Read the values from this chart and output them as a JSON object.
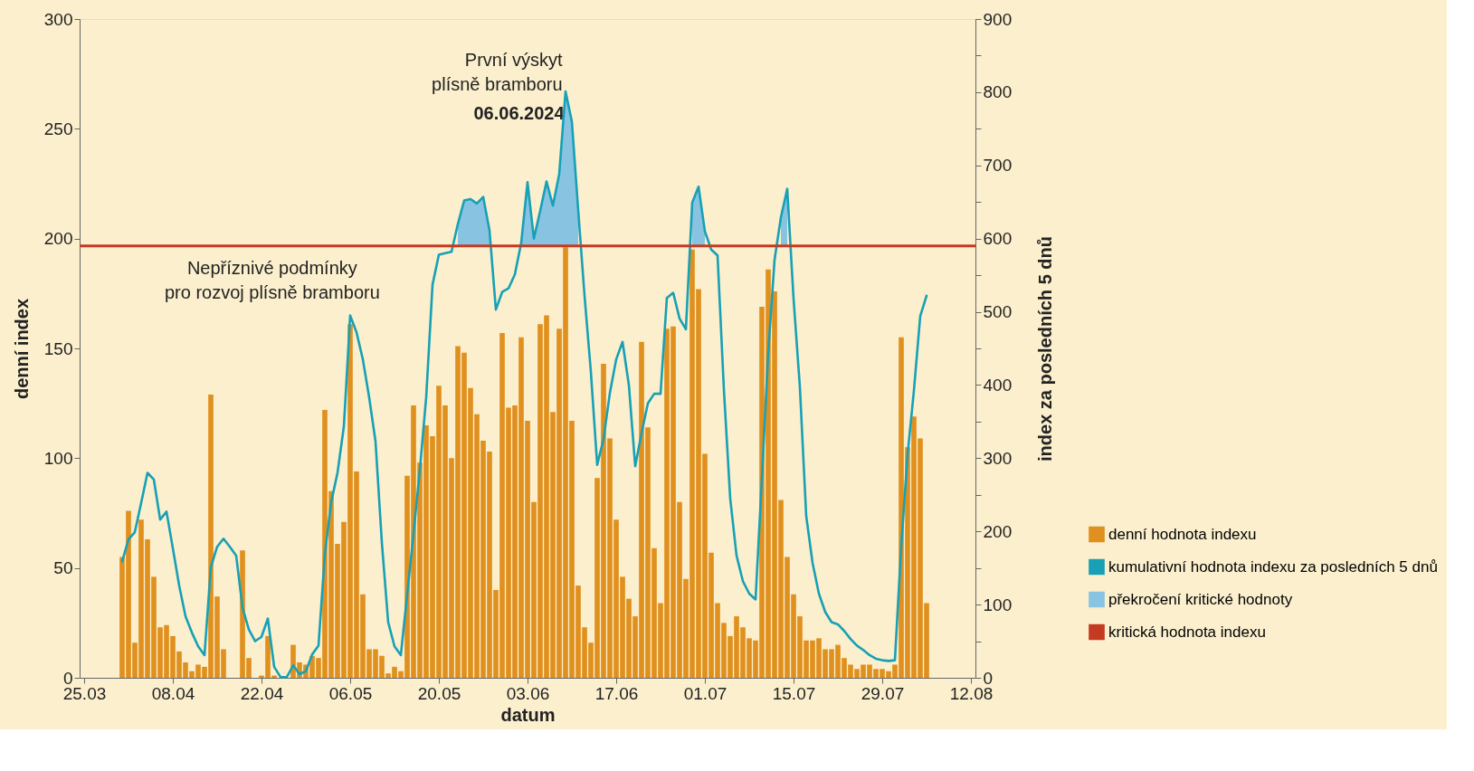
{
  "chart_data": {
    "type": "bar",
    "xlabel": "datum",
    "ylabel": "denní index",
    "y2label": "index za posledních 5 dnů",
    "x": [
      "2024-03-31",
      "2024-04-01",
      "2024-04-02",
      "2024-04-03",
      "2024-04-04",
      "2024-04-05",
      "2024-04-06",
      "2024-04-07",
      "2024-04-08",
      "2024-04-09",
      "2024-04-10",
      "2024-04-11",
      "2024-04-12",
      "2024-04-13",
      "2024-04-14",
      "2024-04-15",
      "2024-04-16",
      "2024-04-17",
      "2024-04-18",
      "2024-04-19",
      "2024-04-20",
      "2024-04-21",
      "2024-04-22",
      "2024-04-23",
      "2024-04-24",
      "2024-04-25",
      "2024-04-26",
      "2024-04-27",
      "2024-04-28",
      "2024-04-29",
      "2024-04-30",
      "2024-05-01",
      "2024-05-02",
      "2024-05-03",
      "2024-05-04",
      "2024-05-05",
      "2024-05-06",
      "2024-05-07",
      "2024-05-08",
      "2024-05-09",
      "2024-05-10",
      "2024-05-11",
      "2024-05-12",
      "2024-05-13",
      "2024-05-14",
      "2024-05-15",
      "2024-05-16",
      "2024-05-17",
      "2024-05-18",
      "2024-05-19",
      "2024-05-20",
      "2024-05-21",
      "2024-05-22",
      "2024-05-23",
      "2024-05-24",
      "2024-05-25",
      "2024-05-26",
      "2024-05-27",
      "2024-05-28",
      "2024-05-29",
      "2024-05-30",
      "2024-05-31",
      "2024-06-01",
      "2024-06-02",
      "2024-06-03",
      "2024-06-04",
      "2024-06-05",
      "2024-06-06",
      "2024-06-07",
      "2024-06-08",
      "2024-06-09",
      "2024-06-10",
      "2024-06-11",
      "2024-06-12",
      "2024-06-13",
      "2024-06-14",
      "2024-06-15",
      "2024-06-16",
      "2024-06-17",
      "2024-06-18",
      "2024-06-19",
      "2024-06-20",
      "2024-06-21",
      "2024-06-22",
      "2024-06-23",
      "2024-06-24",
      "2024-06-25",
      "2024-06-26",
      "2024-06-27",
      "2024-06-28",
      "2024-06-29",
      "2024-06-30",
      "2024-07-01",
      "2024-07-02",
      "2024-07-03",
      "2024-07-04",
      "2024-07-05",
      "2024-07-06",
      "2024-07-07",
      "2024-07-08",
      "2024-07-09",
      "2024-07-10",
      "2024-07-11",
      "2024-07-12",
      "2024-07-13",
      "2024-07-14",
      "2024-07-15",
      "2024-07-16",
      "2024-07-17",
      "2024-07-18",
      "2024-07-19",
      "2024-07-20",
      "2024-07-21",
      "2024-07-22",
      "2024-07-23",
      "2024-07-24",
      "2024-07-25",
      "2024-07-26",
      "2024-07-27",
      "2024-07-28",
      "2024-07-29",
      "2024-07-30",
      "2024-07-31",
      "2024-08-01",
      "2024-08-02",
      "2024-08-03",
      "2024-08-04",
      "2024-08-05"
    ],
    "series": [
      {
        "name": "denní hodnota indexu",
        "color": "#e0901e",
        "values": [
          55,
          76,
          16,
          72,
          63,
          46,
          23,
          24,
          19,
          12,
          7,
          3,
          6,
          5,
          129,
          37,
          13,
          0,
          0,
          58,
          9,
          0,
          1,
          19,
          1,
          0,
          0,
          15,
          7,
          6,
          10,
          9,
          122,
          85,
          61,
          71,
          161,
          94,
          38,
          13,
          13,
          10,
          2,
          5,
          3,
          92,
          124,
          98,
          115,
          110,
          133,
          124,
          100,
          151,
          148,
          132,
          120,
          108,
          103,
          40,
          157,
          123,
          124,
          155,
          117,
          80,
          161,
          165,
          121,
          159,
          196,
          117,
          42,
          23,
          16,
          91,
          143,
          109,
          72,
          46,
          36,
          28,
          153,
          114,
          59,
          34,
          159,
          160,
          80,
          45,
          195,
          177,
          102,
          57,
          34,
          25,
          19,
          28,
          23,
          18,
          17,
          169,
          186,
          176,
          81,
          55,
          38,
          28,
          17,
          17,
          18,
          13,
          13,
          15,
          9,
          6,
          4,
          6,
          6,
          4,
          4,
          3,
          6,
          155,
          105,
          119,
          109,
          34
        ]
      },
      {
        "name": "kumulativní hodnota indexu za posledních 5 dnů",
        "type": "line",
        "axis": "y2",
        "color": "#17a0b6",
        "values": [
          159,
          189,
          199,
          239,
          280,
          271,
          216,
          227,
          177,
          126,
          84,
          62,
          43,
          31,
          151,
          179,
          190,
          179,
          167,
          96,
          66,
          50,
          56,
          81,
          15,
          1,
          1,
          17,
          5,
          9,
          32,
          44,
          169,
          240,
          280,
          343,
          495,
          472,
          435,
          383,
          323,
          185,
          76,
          43,
          31,
          114,
          197,
          284,
          383,
          537,
          578,
          580,
          582,
          620,
          652,
          654,
          648,
          657,
          611,
          503,
          527,
          532,
          551,
          594,
          677,
          600,
          638,
          678,
          645,
          688,
          801,
          760,
          639,
          522,
          418,
          291,
          326,
          389,
          435,
          459,
          400,
          289,
          334,
          375,
          388,
          388,
          519,
          526,
          491,
          476,
          649,
          671,
          610,
          585,
          577,
          394,
          245,
          167,
          132,
          115,
          107,
          272,
          444,
          571,
          629,
          668,
          518,
          397,
          221,
          157,
          115,
          90,
          76,
          73,
          64,
          53,
          44,
          38,
          31,
          26,
          24,
          23,
          24,
          180,
          305,
          392,
          494,
          522
        ]
      },
      {
        "name": "překročení kritické hodnoty",
        "type": "area",
        "axis": "y2",
        "color": "#88c4e2",
        "values": [
          null,
          null,
          null,
          null,
          null,
          null,
          null,
          null,
          null,
          null,
          null,
          null,
          null,
          null,
          null,
          null,
          null,
          null,
          null,
          null,
          null,
          null,
          null,
          null,
          null,
          null,
          null,
          null,
          null,
          null,
          null,
          null,
          null,
          null,
          null,
          null,
          null,
          null,
          null,
          null,
          null,
          null,
          null,
          null,
          null,
          null,
          null,
          null,
          null,
          null,
          null,
          null,
          null,
          620,
          652,
          654,
          648,
          657,
          611,
          null,
          null,
          null,
          null,
          594,
          677,
          600,
          638,
          678,
          645,
          688,
          801,
          760,
          639,
          null,
          null,
          null,
          null,
          null,
          null,
          null,
          null,
          null,
          null,
          null,
          null,
          null,
          null,
          null,
          null,
          null,
          649,
          671,
          610,
          null,
          null,
          null,
          null,
          null,
          null,
          null,
          null,
          null,
          null,
          null,
          629,
          668,
          null,
          null,
          null,
          null,
          null,
          null,
          null,
          null,
          null,
          null,
          null,
          null,
          null,
          null,
          null,
          null,
          null,
          null,
          null,
          null,
          null,
          null
        ]
      }
    ],
    "ref_lines": [
      {
        "axis": "y2",
        "value": 590,
        "label": "kritická hodnota indexu",
        "color": "#c53a22"
      }
    ],
    "annotations": [
      "Nepříznivé podmínky pro rozvoj plísně bramboru",
      "První výskyt plísně bramboru",
      "06.06.2024"
    ],
    "xlim": [
      "2024-03-25",
      "2024-08-12"
    ],
    "xticks": [
      {
        "value": "2024-03-25",
        "label": "25.03"
      },
      {
        "value": "2024-04-08",
        "label": "08.04"
      },
      {
        "value": "2024-04-22",
        "label": "22.04"
      },
      {
        "value": "2024-05-06",
        "label": "06.05"
      },
      {
        "value": "2024-05-20",
        "label": "20.05"
      },
      {
        "value": "2024-06-03",
        "label": "03.06"
      },
      {
        "value": "2024-06-17",
        "label": "17.06"
      },
      {
        "value": "2024-07-01",
        "label": "01.07"
      },
      {
        "value": "2024-07-15",
        "label": "15.07"
      },
      {
        "value": "2024-07-29",
        "label": "29.07"
      },
      {
        "value": "2024-08-12",
        "label": "12.08"
      }
    ],
    "ylim": [
      0,
      300
    ],
    "yticks": [
      0,
      50,
      100,
      150,
      200,
      250,
      300
    ],
    "y2lim": [
      0,
      900
    ],
    "y2ticks": [
      0,
      {
        "value": 50,
        "label": null
      },
      100,
      {
        "value": 150,
        "label": null
      },
      200,
      {
        "value": 250,
        "label": null
      },
      300,
      {
        "value": 350,
        "label": null
      },
      400,
      {
        "value": 450,
        "label": null
      },
      500,
      {
        "value": 550,
        "label": null
      },
      600,
      {
        "value": 650,
        "label": null
      },
      700,
      {
        "value": 750,
        "label": null
      },
      800,
      {
        "value": 850,
        "label": null
      },
      900
    ],
    "legend": "right",
    "grid": false
  }
}
